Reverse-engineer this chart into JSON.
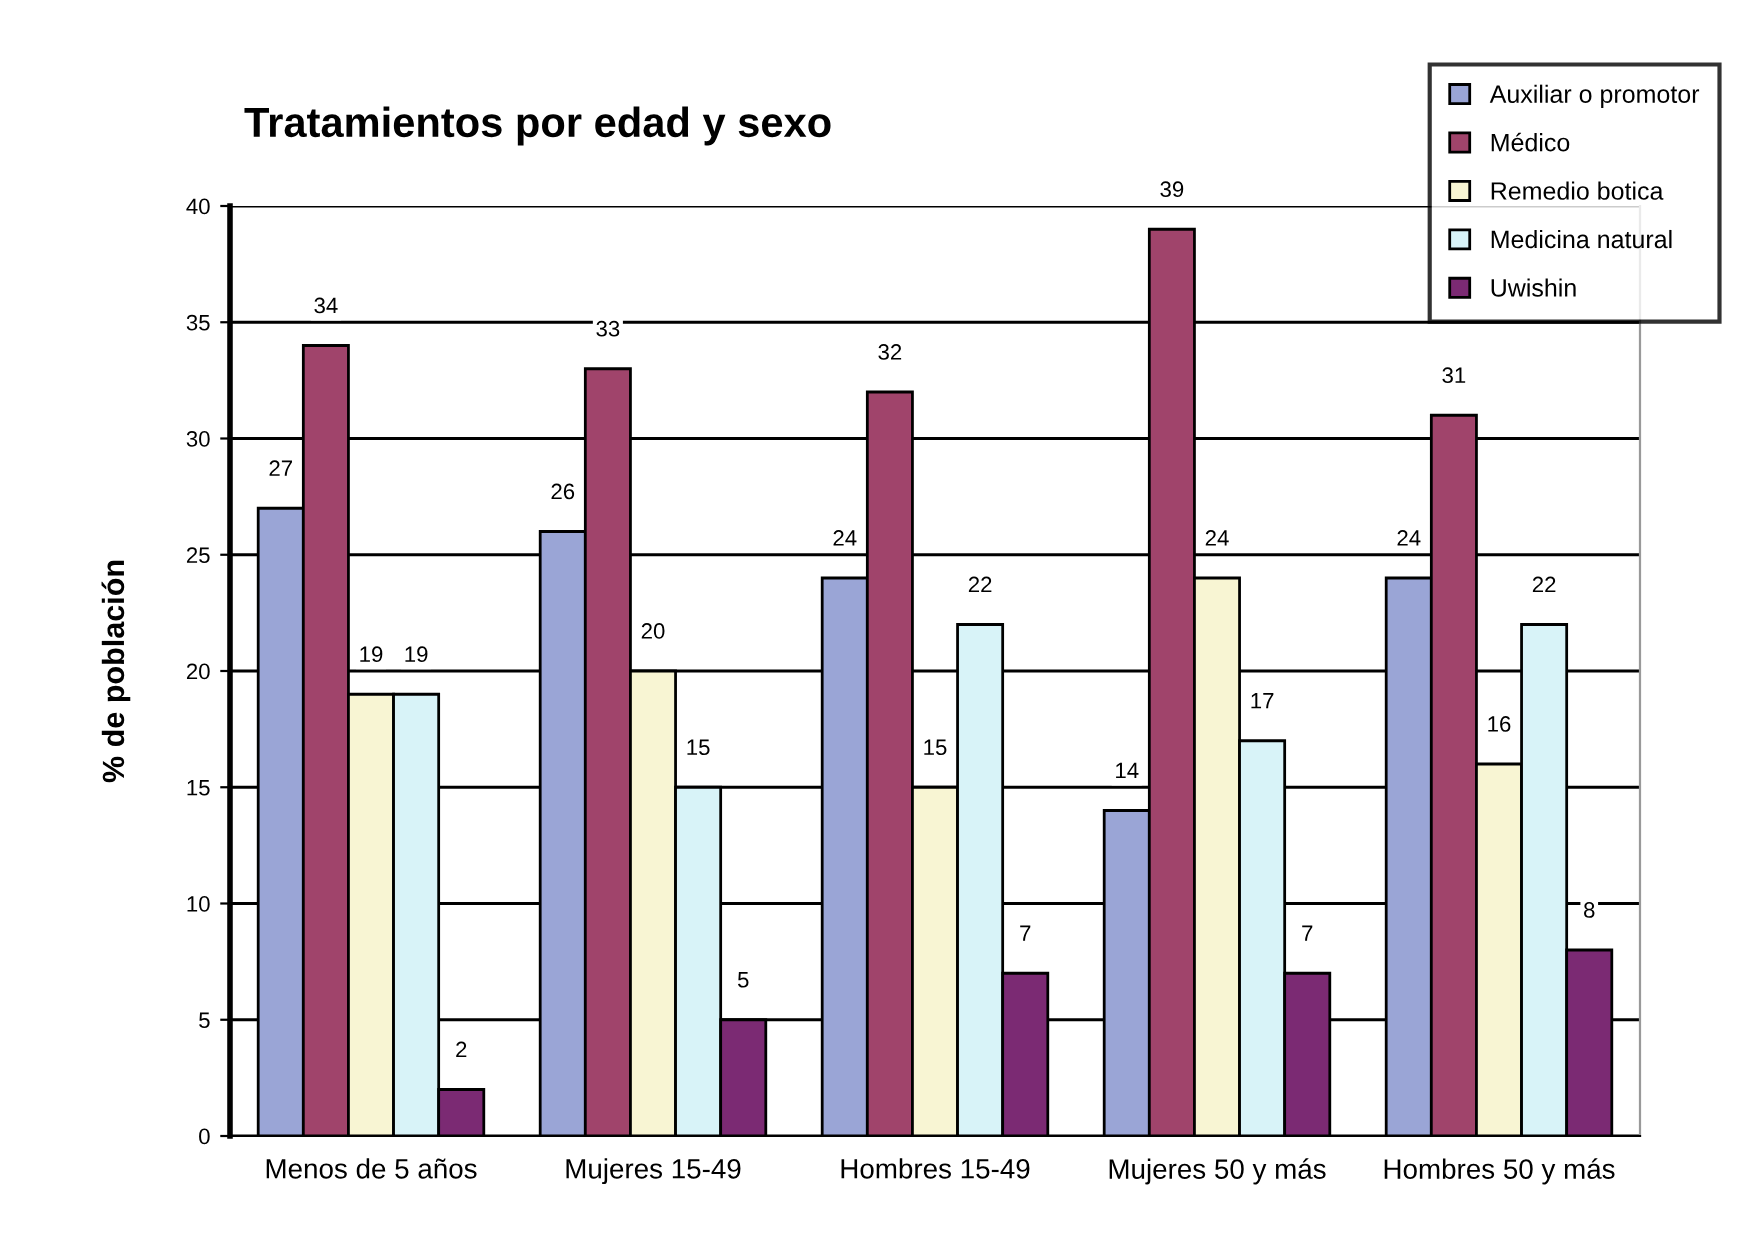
{
  "chart_data": {
    "type": "bar",
    "title": "Tratamientos por edad y sexo",
    "ylabel": "% de población",
    "categories": [
      "Menos de 5 años",
      "Mujeres 15-49",
      "Hombres 15-49",
      "Mujeres 50 y más",
      "Hombres 50 y más"
    ],
    "series": [
      {
        "name": "Auxiliar o promotor",
        "color": "#9aa5d6",
        "values": [
          27,
          26,
          24,
          14,
          24
        ]
      },
      {
        "name": "Médico",
        "color": "#a0446b",
        "values": [
          34,
          33,
          32,
          39,
          31
        ]
      },
      {
        "name": "Remedio botica",
        "color": "#f8f5d3",
        "values": [
          19,
          20,
          15,
          24,
          16
        ]
      },
      {
        "name": "Medicina natural",
        "color": "#d8f3f8",
        "values": [
          19,
          15,
          22,
          17,
          22
        ]
      },
      {
        "name": "Uwishin",
        "color": "#7b2a73",
        "values": [
          2,
          5,
          7,
          7,
          8
        ]
      }
    ],
    "ylim": [
      0,
      40
    ],
    "yticks": [
      0,
      5,
      10,
      15,
      20,
      25,
      30,
      35,
      40
    ],
    "grid": "y",
    "legend": "top right",
    "data_labels": true
  }
}
